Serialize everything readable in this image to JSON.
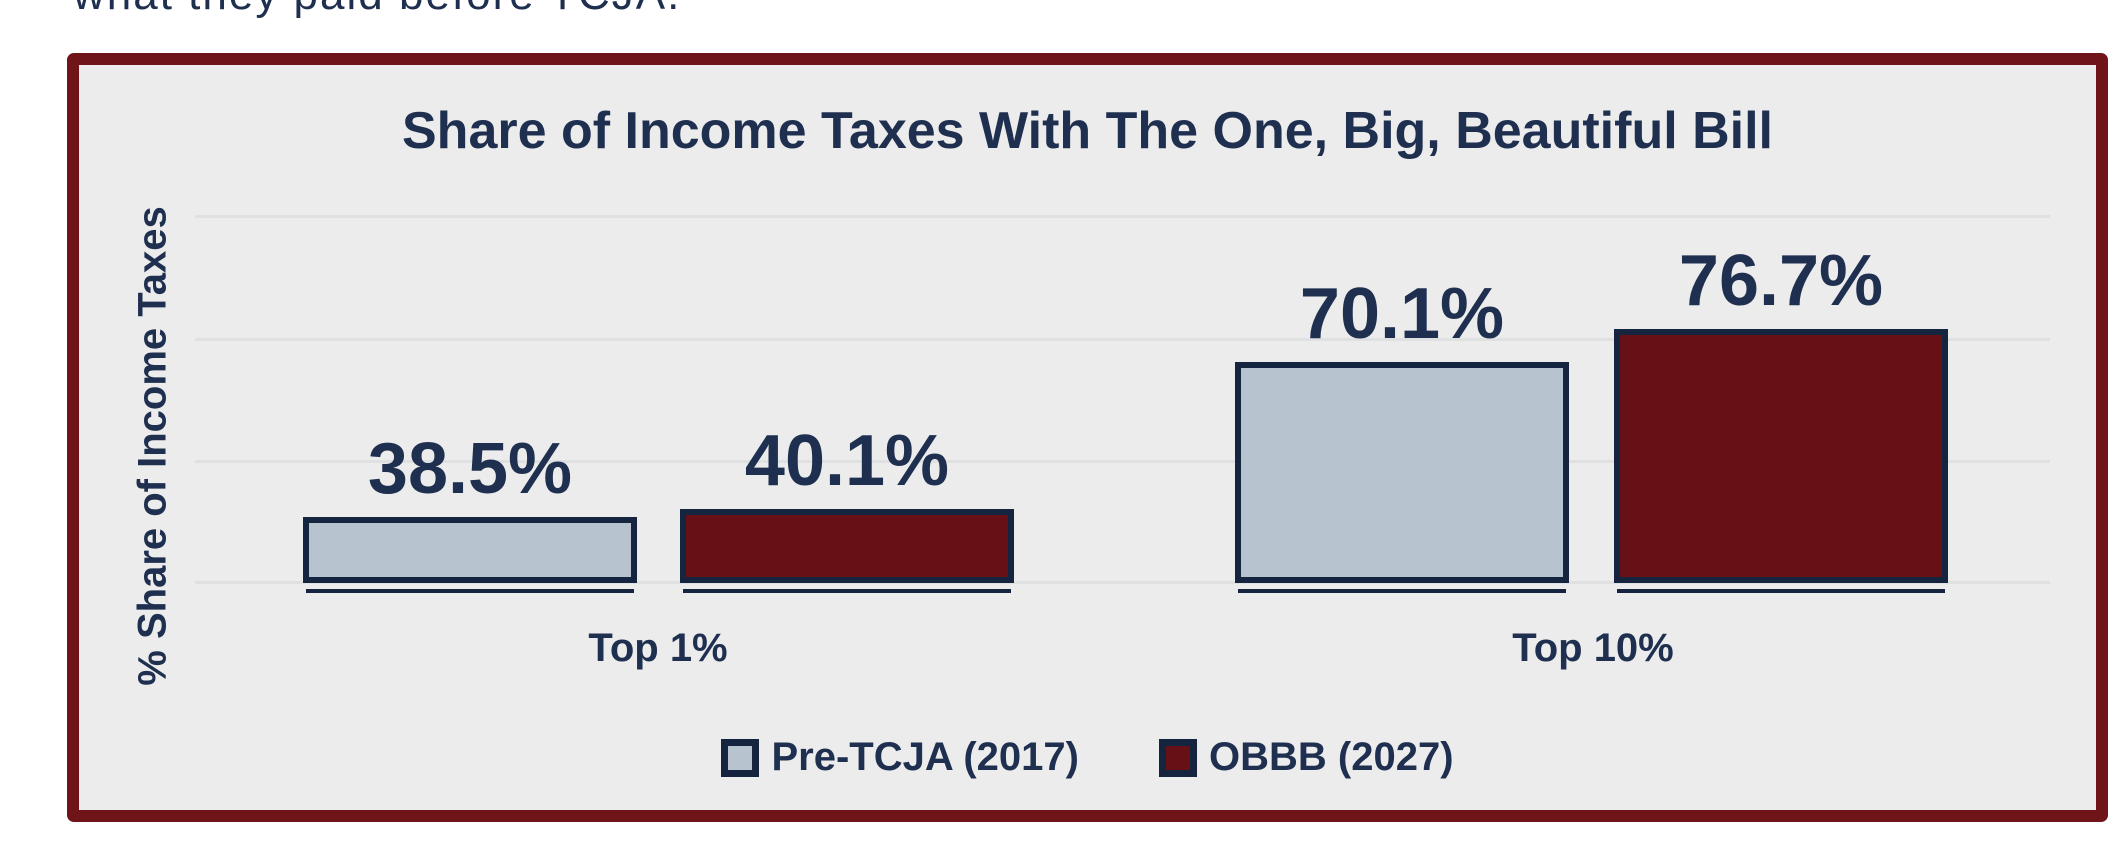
{
  "page": {
    "top_partial_text": "what they paid before TCJA."
  },
  "chart": {
    "title": "Share of Income Taxes With The One, Big, Beautiful Bill",
    "y_axis_label": "% Share of Income Taxes",
    "colors": {
      "navy_text": "#1f2f4f",
      "bar_border": "#16253f",
      "frame_red": "#6f1418",
      "chart_bg": "#ececec",
      "gridline": "#dee0e2",
      "pre_tcja_fill": "#b8c3d0",
      "obbb_fill": "#671117"
    }
  },
  "chart_data": {
    "type": "bar",
    "title": "Share of Income Taxes With The One, Big, Beautiful Bill",
    "xlabel": "",
    "ylabel": "% Share of Income Taxes",
    "categories": [
      "Top 1%",
      "Top 10%"
    ],
    "series": [
      {
        "name": "Pre-TCJA (2017)",
        "color": "#b8c3d0",
        "values": [
          38.5,
          70.1
        ],
        "value_labels": [
          "38.5%",
          "70.1%"
        ]
      },
      {
        "name": "OBBB (2027)",
        "color": "#671117",
        "values": [
          40.1,
          76.7
        ],
        "value_labels": [
          "40.1%",
          "76.7%"
        ]
      }
    ],
    "ylim": [
      25,
      100
    ],
    "gridline_interval": 25,
    "grid": true,
    "y_tick_labels_visible": false,
    "legend_position": "bottom"
  }
}
